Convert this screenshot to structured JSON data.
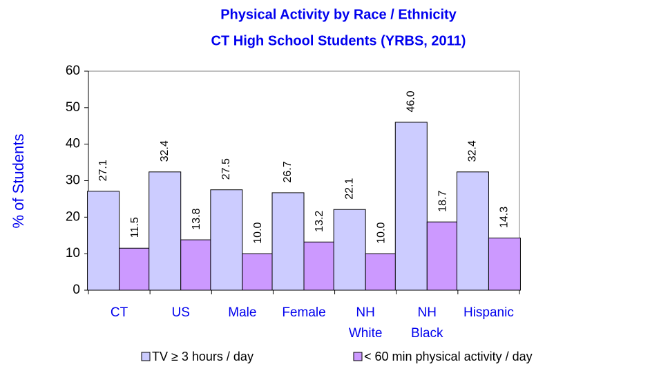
{
  "chart_data": {
    "type": "bar",
    "title": "Physical Activity by Race / Ethnicity",
    "subtitle": "CT High School Students (YRBS, 2011)",
    "ylabel": "% of Students",
    "categories": [
      "CT",
      "US",
      "Male",
      "Female",
      "NH White",
      "NH Black",
      "Hispanic"
    ],
    "series": [
      {
        "name": "TV ≥  3 hours / day",
        "color": "#ccccff",
        "values": [
          27.1,
          32.4,
          27.5,
          26.7,
          22.1,
          46.0,
          32.4
        ],
        "value_labels": [
          "27.1",
          "32.4",
          "27.5",
          "26.7",
          "22.1",
          "46.0",
          "32.4"
        ]
      },
      {
        "name": "< 60 min physical activity / day",
        "color": "#cc99ff",
        "values": [
          11.5,
          13.8,
          10.0,
          13.2,
          10.0,
          18.7,
          14.3
        ],
        "value_labels": [
          "11.5",
          "13.8",
          "10.0",
          "13.2",
          "10.0",
          "18.7",
          "14.3"
        ]
      }
    ],
    "ylim": [
      0,
      60
    ],
    "yticks": [
      0,
      10,
      20,
      30,
      40,
      50,
      60
    ]
  }
}
